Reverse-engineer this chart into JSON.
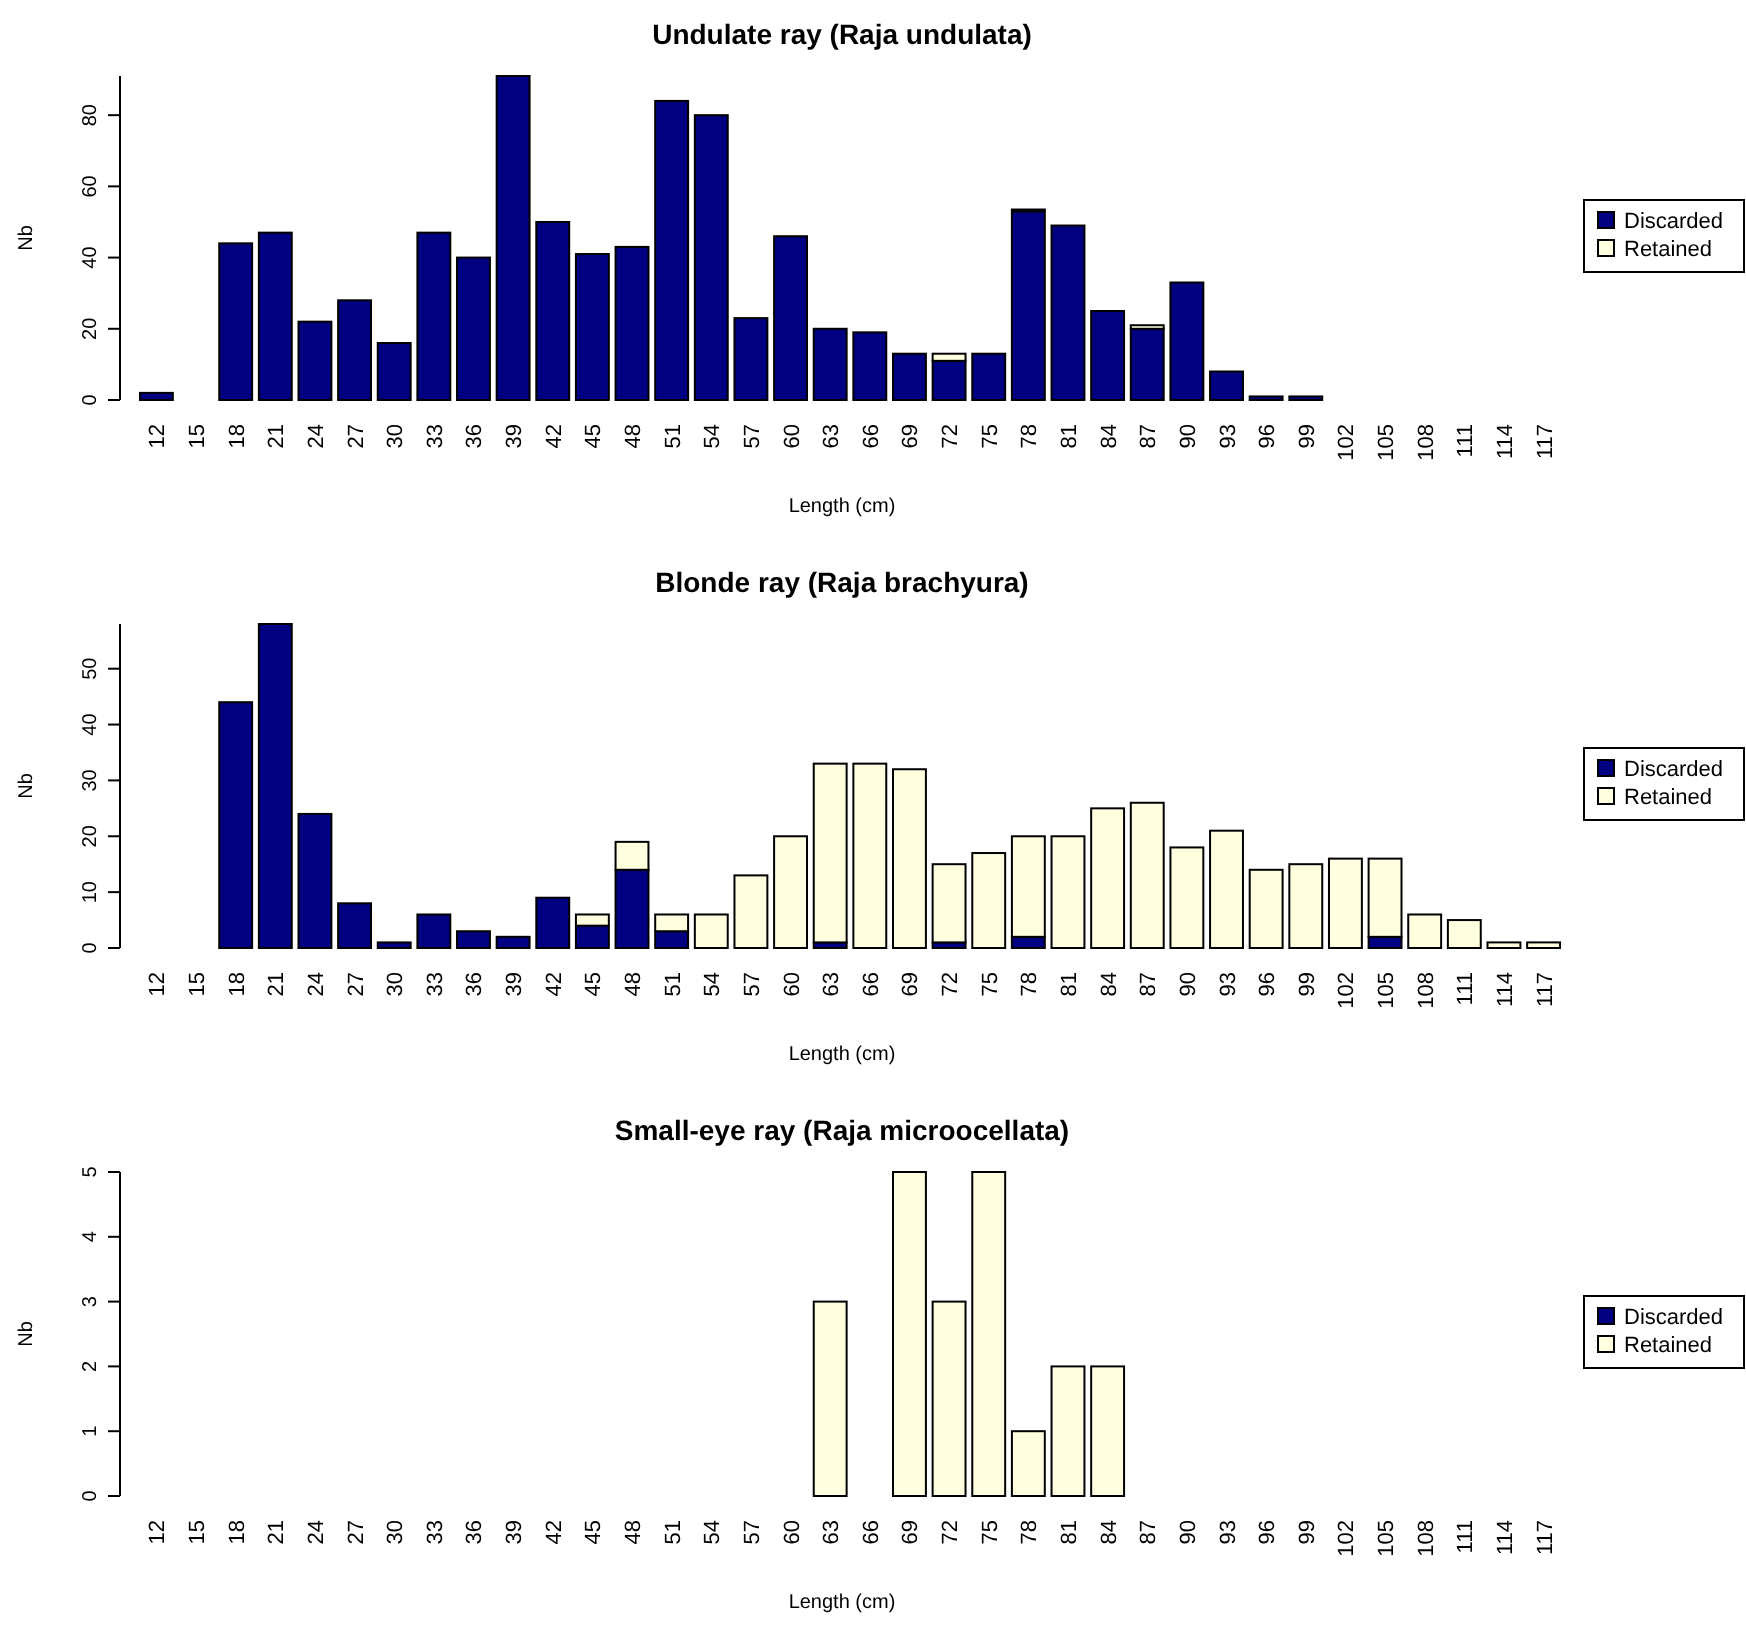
{
  "chart_data": [
    {
      "type": "bar",
      "title": "Undulate ray (Raja undulata)",
      "xlabel": "Length (cm)",
      "ylabel": "Nb",
      "stacked": true,
      "legend": "right",
      "ylim": [
        0,
        91
      ],
      "yticks": [
        0,
        20,
        40,
        60,
        80
      ],
      "categories": [
        "12",
        "15",
        "18",
        "21",
        "24",
        "27",
        "30",
        "33",
        "36",
        "39",
        "42",
        "45",
        "48",
        "51",
        "54",
        "57",
        "60",
        "63",
        "66",
        "69",
        "72",
        "75",
        "78",
        "81",
        "84",
        "87",
        "90",
        "93",
        "96",
        "99",
        "102",
        "105",
        "108",
        "111",
        "114",
        "117"
      ],
      "series": [
        {
          "name": "Discarded",
          "color": "#000080",
          "values": [
            2,
            0,
            44,
            47,
            22,
            28,
            16,
            47,
            40,
            91,
            50,
            41,
            43,
            84,
            80,
            23,
            46,
            20,
            19,
            13,
            11,
            13,
            53,
            49,
            25,
            20,
            33,
            8,
            1,
            1,
            0,
            0,
            0,
            0,
            0,
            0
          ]
        },
        {
          "name": "Retained",
          "color": "#ffffe0",
          "values": [
            0,
            0,
            0,
            0,
            0,
            0,
            0,
            0,
            0,
            0,
            0,
            0,
            0,
            0,
            0,
            0,
            0,
            0,
            0,
            0,
            2,
            0,
            0.5,
            0,
            0,
            1,
            0,
            0,
            0,
            0,
            0,
            0,
            0,
            0,
            0,
            0
          ]
        }
      ]
    },
    {
      "type": "bar",
      "title": "Blonde ray (Raja brachyura)",
      "xlabel": "Length (cm)",
      "ylabel": "Nb",
      "stacked": true,
      "legend": "right",
      "ylim": [
        0,
        58
      ],
      "yticks": [
        0,
        10,
        20,
        30,
        40,
        50
      ],
      "categories": [
        "12",
        "15",
        "18",
        "21",
        "24",
        "27",
        "30",
        "33",
        "36",
        "39",
        "42",
        "45",
        "48",
        "51",
        "54",
        "57",
        "60",
        "63",
        "66",
        "69",
        "72",
        "75",
        "78",
        "81",
        "84",
        "87",
        "90",
        "93",
        "96",
        "99",
        "102",
        "105",
        "108",
        "111",
        "114",
        "117"
      ],
      "series": [
        {
          "name": "Discarded",
          "color": "#000080",
          "values": [
            0,
            0,
            44,
            58,
            24,
            8,
            1,
            6,
            3,
            2,
            9,
            4,
            14,
            3,
            0,
            0,
            0,
            1,
            0,
            0,
            1,
            0,
            2,
            0,
            0,
            0,
            0,
            0,
            0,
            0,
            0,
            2,
            0,
            0,
            0,
            0
          ]
        },
        {
          "name": "Retained",
          "color": "#ffffe0",
          "values": [
            0,
            0,
            0,
            0,
            0,
            0,
            0,
            0,
            0,
            0,
            0,
            2,
            5,
            3,
            6,
            13,
            20,
            32,
            33,
            32,
            14,
            17,
            18,
            20,
            25,
            26,
            18,
            21,
            14,
            15,
            16,
            14,
            6,
            5,
            1,
            1
          ]
        }
      ]
    },
    {
      "type": "bar",
      "title": "Small-eye ray (Raja microocellata)",
      "xlabel": "Length (cm)",
      "ylabel": "Nb",
      "stacked": true,
      "legend": "right",
      "ylim": [
        0,
        5
      ],
      "yticks": [
        0,
        1,
        2,
        3,
        4,
        5
      ],
      "categories": [
        "12",
        "15",
        "18",
        "21",
        "24",
        "27",
        "30",
        "33",
        "36",
        "39",
        "42",
        "45",
        "48",
        "51",
        "54",
        "57",
        "60",
        "63",
        "66",
        "69",
        "72",
        "75",
        "78",
        "81",
        "84",
        "87",
        "90",
        "93",
        "96",
        "99",
        "102",
        "105",
        "108",
        "111",
        "114",
        "117"
      ],
      "series": [
        {
          "name": "Discarded",
          "color": "#000080",
          "values": [
            0,
            0,
            0,
            0,
            0,
            0,
            0,
            0,
            0,
            0,
            0,
            0,
            0,
            0,
            0,
            0,
            0,
            0,
            0,
            0,
            0,
            0,
            0,
            0,
            0,
            0,
            0,
            0,
            0,
            0,
            0,
            0,
            0,
            0,
            0,
            0
          ]
        },
        {
          "name": "Retained",
          "color": "#ffffe0",
          "values": [
            0,
            0,
            0,
            0,
            0,
            0,
            0,
            0,
            0,
            0,
            0,
            0,
            0,
            0,
            0,
            0,
            0,
            3,
            0,
            5,
            3,
            5,
            1,
            2,
            2,
            0,
            0,
            0,
            0,
            0,
            0,
            0,
            0,
            0,
            0,
            0
          ]
        }
      ]
    }
  ]
}
